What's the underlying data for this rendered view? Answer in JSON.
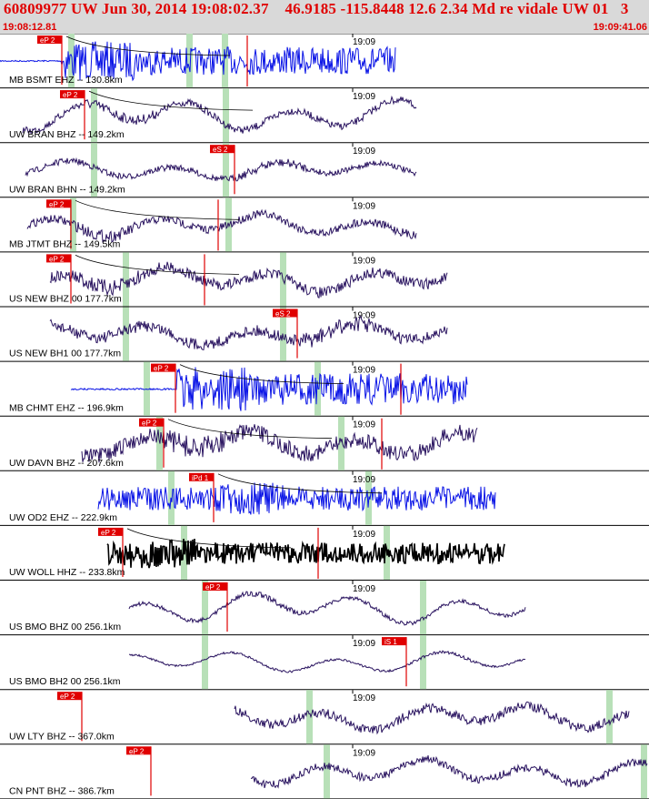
{
  "header": {
    "title": "60809977 UW Jun 30, 2014 19:08:02.37    46.9185 -115.8448 12.6 2.34 Md re vidale UW 01   3",
    "start_time": "19:08:12.81",
    "end_time": "19:09:41.06"
  },
  "time_tick_label": "19:09",
  "colors": {
    "header_bg": "#d9d9d9",
    "header_text": "#e00000",
    "pick": "#e00000",
    "pick_text": "#ffffff",
    "window": "#b8e0b8",
    "blue_trace": "#0a14e6",
    "purple_trace": "#2a1460",
    "black_trace": "#000000"
  },
  "traces": [
    {
      "label": "MB BSMT EHZ -- 130.8km",
      "pick": "eP 2",
      "color": "blue"
    },
    {
      "label": "UW BRAN BHZ -- 149.2km",
      "pick": "eP 2",
      "color": "purple"
    },
    {
      "label": "UW BRAN BHN -- 149.2km",
      "pick": "eS 2",
      "color": "purple"
    },
    {
      "label": "MB JTMT BHZ -- 149.5km",
      "pick": "eP 2",
      "color": "purple"
    },
    {
      "label": "US NEW BHZ 00 177.7km",
      "pick": "eP 2",
      "color": "purple"
    },
    {
      "label": "US NEW BH1 00 177.7km",
      "pick": "eS 2",
      "color": "purple"
    },
    {
      "label": "MB CHMT EHZ -- 196.9km",
      "pick": "eP 2",
      "color": "blue"
    },
    {
      "label": "UW DAVN BHZ -- 207.6km",
      "pick": "eP 2",
      "color": "purple"
    },
    {
      "label": "UW OD2 EHZ -- 222.9km",
      "pick": "iPd 1",
      "color": "blue"
    },
    {
      "label": "UW WOLL HHZ -- 233.8km",
      "pick": "eP 2",
      "color": "black"
    },
    {
      "label": "US BMO BHZ 00 256.1km",
      "pick": "eP 2",
      "color": "purple"
    },
    {
      "label": "US BMO BH2 00 256.1km",
      "pick": "iS 1",
      "color": "purple"
    },
    {
      "label": "UW LTY BHZ -- 367.0km",
      "pick": "eP 2",
      "color": "purple"
    },
    {
      "label": "CN PNT BHZ -- 386.7km",
      "pick": "eP 2",
      "color": "purple"
    }
  ]
}
